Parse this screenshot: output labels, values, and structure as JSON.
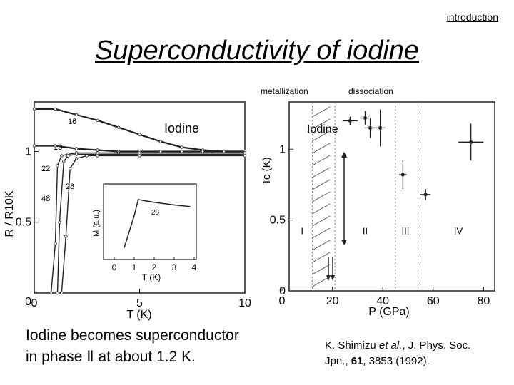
{
  "header": {
    "section_tag": "introduction",
    "title": "Superconductivity of iodine"
  },
  "caption": {
    "line1": "Iodine becomes superconductor",
    "line2": "in phase Ⅱ at about 1.2 K."
  },
  "reference": {
    "authors": "K. Shimizu ",
    "etal": "et al.",
    "journal": ", J. Phys. Soc.",
    "journal2": "Jpn., ",
    "volume": "61",
    "pages": ", 3853 (1992)."
  },
  "chart_data": [
    {
      "type": "line",
      "ylabel": "R / R10K",
      "xlabel": "T (K)",
      "xlim": [
        0,
        10
      ],
      "ylim": [
        0,
        1.35
      ],
      "xticks": [
        "0",
        "5",
        "10"
      ],
      "yticks": [
        "0.5",
        "1"
      ],
      "legend_text": "Iodine",
      "series": [
        {
          "name": "16",
          "x": [
            0,
            1,
            2,
            3,
            4,
            5,
            6,
            7,
            8,
            9,
            10
          ],
          "y": [
            1.3,
            1.3,
            1.26,
            1.22,
            1.17,
            1.12,
            1.07,
            1.03,
            1.01,
            1.0,
            1.0
          ]
        },
        {
          "name": "18",
          "x": [
            0,
            1,
            2,
            3,
            4,
            5,
            6,
            7,
            8,
            9,
            10
          ],
          "y": [
            1.04,
            1.04,
            1.02,
            1.01,
            1.0,
            1.0,
            1.0,
            1.0,
            1.0,
            1.0,
            1.0
          ]
        },
        {
          "name": "22",
          "x": [
            0.8,
            1.0,
            1.1,
            1.3,
            1.6,
            2,
            3,
            4,
            5,
            10
          ],
          "y": [
            0.0,
            0.35,
            0.9,
            0.97,
            0.98,
            0.99,
            0.99,
            0.99,
            0.99,
            0.99
          ]
        },
        {
          "name": "48",
          "x": [
            1.1,
            1.2,
            1.4,
            1.6,
            2,
            3,
            5,
            10
          ],
          "y": [
            0.0,
            0.5,
            0.93,
            0.97,
            0.98,
            0.98,
            0.98,
            0.98
          ]
        },
        {
          "name": "28",
          "x": [
            1.3,
            1.5,
            1.7,
            2.0,
            2.5,
            3,
            5,
            10
          ],
          "y": [
            0.0,
            0.4,
            0.88,
            0.95,
            0.97,
            0.97,
            0.97,
            0.97
          ]
        }
      ],
      "inset": {
        "xlabel": "T (K)",
        "ylabel": "M (a.u.)",
        "xlim": [
          0,
          4
        ],
        "xticks": [
          "0",
          "1",
          "2",
          "3",
          "4"
        ],
        "series_name": "28",
        "x": [
          0.5,
          1.0,
          1.2,
          2,
          3,
          3.8
        ],
        "y": [
          0.1,
          0.7,
          1.0,
          0.95,
          0.9,
          0.87
        ]
      }
    },
    {
      "type": "scatter",
      "xlabel": "P (GPa)",
      "ylabel": "Tc (K)",
      "xlim": [
        0,
        85
      ],
      "ylim": [
        0,
        1.4
      ],
      "xticks": [
        "0",
        "20",
        "40",
        "60",
        "80"
      ],
      "yticks": [
        "0",
        "0.5",
        "1"
      ],
      "legend_text": "Iodine",
      "annotations": [
        "metallization",
        "dissociation"
      ],
      "phases": [
        "I",
        "II",
        "III",
        "IV"
      ],
      "x": [
        27,
        33,
        35,
        39,
        48,
        57,
        75
      ],
      "y": [
        1.2,
        1.22,
        1.15,
        1.15,
        0.82,
        0.68,
        1.05
      ],
      "xerr": [
        3,
        1.5,
        2,
        2,
        1.5,
        2,
        5
      ],
      "yerr": [
        0.03,
        0.05,
        0.07,
        0.13,
        0.1,
        0.04,
        0.13
      ]
    }
  ]
}
